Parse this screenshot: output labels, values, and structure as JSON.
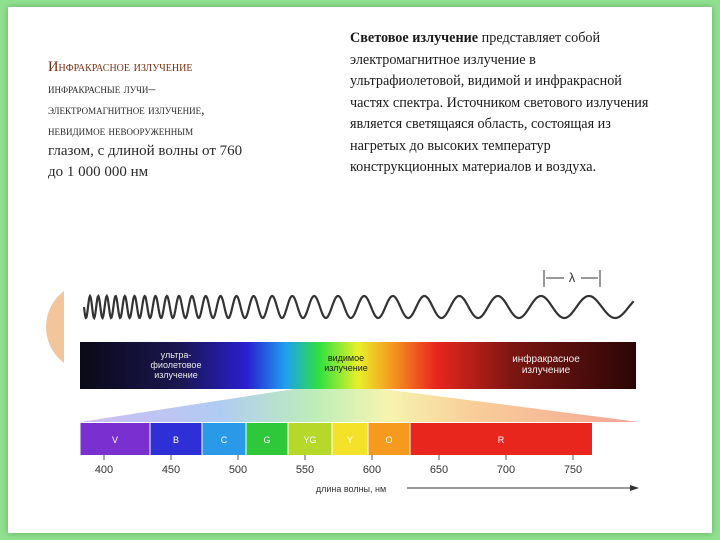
{
  "left": {
    "title": "Инфракрасное излучение",
    "line1": "инфракрасные лучи–",
    "line2": "электромагнитное излучение,",
    "line3": "невидимое невооруженным",
    "line4": "глазом, с длиной волны от 760",
    "line5": "до 1 000 000 нм"
  },
  "right": {
    "bold": "Световое  излучение",
    "text": " представляет собой электромагнитное излучение в ультрафиолетовой, видимой и инфракрасной частях спектра. Источником светового излучения является светящаяся область, состоящая из нагретых до высоких температур конструкционных материалов и воздуха."
  },
  "figure": {
    "lambda": "λ",
    "uv_label": [
      "ультра-",
      "фиолетовое",
      "излучение"
    ],
    "visible_label": [
      "видимое",
      "излучение"
    ],
    "ir_label": [
      "инфракрасное",
      "излучение"
    ],
    "colors": [
      {
        "label": "V",
        "color": "#7a2fd0"
      },
      {
        "label": "B",
        "color": "#2f2fd8"
      },
      {
        "label": "C",
        "color": "#2a9ae8"
      },
      {
        "label": "G",
        "color": "#2ec83a"
      },
      {
        "label": "YG",
        "color": "#b6d82a"
      },
      {
        "label": "Y",
        "color": "#f3e12a"
      },
      {
        "label": "O",
        "color": "#f59a1f"
      },
      {
        "label": "R",
        "color": "#e8261e"
      }
    ],
    "ticks": [
      "400",
      "450",
      "500",
      "550",
      "600",
      "650",
      "700",
      "750"
    ],
    "axis_label": "длина волны, нм"
  }
}
